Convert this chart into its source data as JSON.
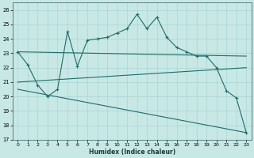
{
  "xlabel": "Humidex (Indice chaleur)",
  "background_color": "#c8e8e6",
  "grid_color": "#a8d4d2",
  "line_color": "#1a6e68",
  "xlim": [
    -0.5,
    23.5
  ],
  "ylim": [
    17,
    26.5
  ],
  "xticks": [
    0,
    1,
    2,
    3,
    4,
    5,
    6,
    7,
    8,
    9,
    10,
    11,
    12,
    13,
    14,
    15,
    16,
    17,
    18,
    19,
    20,
    21,
    22,
    23
  ],
  "yticks": [
    17,
    18,
    19,
    20,
    21,
    22,
    23,
    24,
    25,
    26
  ],
  "curve_jagged": {
    "x": [
      0,
      1,
      2,
      3,
      4,
      5,
      6,
      7,
      8,
      9,
      10,
      11,
      12,
      13,
      14,
      15,
      16,
      17,
      18,
      19,
      20,
      21,
      22,
      23
    ],
    "y": [
      23.1,
      22.2,
      20.8,
      20.0,
      20.5,
      24.5,
      22.1,
      23.9,
      24.0,
      24.1,
      24.4,
      24.7,
      25.7,
      24.7,
      25.5,
      24.1,
      23.4,
      23.1,
      22.8,
      22.8,
      22.0,
      20.4,
      19.9,
      17.5
    ]
  },
  "curve_upper": {
    "x": [
      0,
      23
    ],
    "y": [
      23.1,
      22.8
    ]
  },
  "curve_lower": {
    "x": [
      0,
      23
    ],
    "y": [
      21.0,
      22.0
    ]
  },
  "curve_bottom": {
    "x": [
      0,
      23
    ],
    "y": [
      20.5,
      17.5
    ]
  }
}
